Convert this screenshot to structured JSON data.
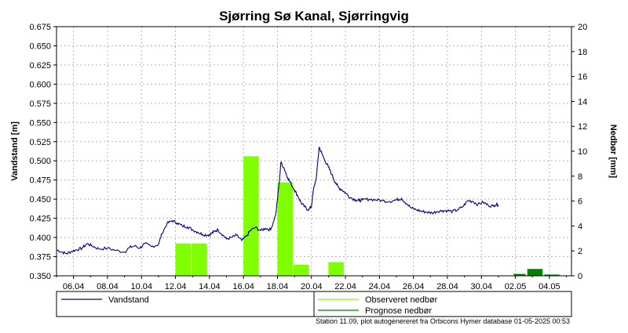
{
  "chart_data": {
    "type": "bar+line",
    "title": "Sjørring Sø Kanal, Sjørringvig",
    "ylabel_left": "Vandstand [m]",
    "ylabel_right": "Nedbør [mm]",
    "ylim_left": [
      0.35,
      0.675
    ],
    "ylim_right": [
      0,
      20
    ],
    "yticks_left": [
      "0.675",
      "0.650",
      "0.625",
      "0.600",
      "0.575",
      "0.550",
      "0.525",
      "0.500",
      "0.475",
      "0.450",
      "0.425",
      "0.400",
      "0.375",
      "0.350"
    ],
    "yticks_right": [
      "20",
      "18",
      "16",
      "14",
      "12",
      "10",
      "8",
      "6",
      "4",
      "2",
      "0"
    ],
    "x_range_days": [
      5.0,
      35.3
    ],
    "xticks": [
      {
        "day": 6,
        "label": "06.04"
      },
      {
        "day": 8,
        "label": "08.04"
      },
      {
        "day": 10,
        "label": "10.04"
      },
      {
        "day": 12,
        "label": "12.04"
      },
      {
        "day": 14,
        "label": "14.04"
      },
      {
        "day": 16,
        "label": "16.04"
      },
      {
        "day": 18,
        "label": "18.04"
      },
      {
        "day": 20,
        "label": "20.04"
      },
      {
        "day": 22,
        "label": "22.04"
      },
      {
        "day": 24,
        "label": "24.04"
      },
      {
        "day": 26,
        "label": "26.04"
      },
      {
        "day": 28,
        "label": "28.04"
      },
      {
        "day": 30,
        "label": "30.04"
      },
      {
        "day": 32,
        "label": "02.05"
      },
      {
        "day": 34,
        "label": "04.05"
      }
    ],
    "grid": true,
    "series": [
      {
        "name": "Vandstand",
        "type": "line",
        "axis": "left",
        "color": "#00008b",
        "points": [
          [
            5.0,
            0.384
          ],
          [
            5.3,
            0.381
          ],
          [
            5.6,
            0.379
          ],
          [
            5.9,
            0.382
          ],
          [
            6.2,
            0.384
          ],
          [
            6.5,
            0.386
          ],
          [
            6.8,
            0.392
          ],
          [
            7.1,
            0.389
          ],
          [
            7.5,
            0.385
          ],
          [
            8.0,
            0.386
          ],
          [
            8.5,
            0.383
          ],
          [
            9.0,
            0.381
          ],
          [
            9.3,
            0.387
          ],
          [
            9.6,
            0.389
          ],
          [
            9.9,
            0.386
          ],
          [
            10.2,
            0.392
          ],
          [
            10.6,
            0.388
          ],
          [
            11.0,
            0.391
          ],
          [
            11.2,
            0.405
          ],
          [
            11.5,
            0.418
          ],
          [
            11.8,
            0.422
          ],
          [
            12.1,
            0.419
          ],
          [
            12.4,
            0.415
          ],
          [
            12.7,
            0.414
          ],
          [
            13.0,
            0.41
          ],
          [
            13.3,
            0.407
          ],
          [
            13.6,
            0.404
          ],
          [
            13.9,
            0.403
          ],
          [
            14.1,
            0.405
          ],
          [
            14.3,
            0.408
          ],
          [
            14.5,
            0.41
          ],
          [
            14.8,
            0.403
          ],
          [
            15.0,
            0.398
          ],
          [
            15.3,
            0.4
          ],
          [
            15.6,
            0.403
          ],
          [
            15.9,
            0.396
          ],
          [
            16.2,
            0.402
          ],
          [
            16.4,
            0.409
          ],
          [
            16.7,
            0.413
          ],
          [
            17.0,
            0.409
          ],
          [
            17.3,
            0.412
          ],
          [
            17.6,
            0.41
          ],
          [
            17.9,
            0.43
          ],
          [
            18.1,
            0.47
          ],
          [
            18.2,
            0.498
          ],
          [
            18.4,
            0.49
          ],
          [
            18.6,
            0.478
          ],
          [
            18.8,
            0.47
          ],
          [
            19.0,
            0.462
          ],
          [
            19.2,
            0.454
          ],
          [
            19.4,
            0.445
          ],
          [
            19.6,
            0.44
          ],
          [
            19.8,
            0.436
          ],
          [
            20.0,
            0.44
          ],
          [
            20.1,
            0.46
          ],
          [
            20.3,
            0.48
          ],
          [
            20.45,
            0.518
          ],
          [
            20.6,
            0.51
          ],
          [
            20.8,
            0.5
          ],
          [
            21.0,
            0.492
          ],
          [
            21.2,
            0.482
          ],
          [
            21.4,
            0.472
          ],
          [
            21.6,
            0.465
          ],
          [
            21.8,
            0.462
          ],
          [
            22.0,
            0.458
          ],
          [
            22.3,
            0.452
          ],
          [
            22.6,
            0.449
          ],
          [
            22.8,
            0.448
          ],
          [
            23.0,
            0.449
          ],
          [
            23.4,
            0.45
          ],
          [
            23.8,
            0.449
          ],
          [
            24.2,
            0.448
          ],
          [
            24.6,
            0.447
          ],
          [
            25.0,
            0.449
          ],
          [
            25.3,
            0.451
          ],
          [
            25.6,
            0.444
          ],
          [
            25.9,
            0.438
          ],
          [
            26.2,
            0.436
          ],
          [
            26.5,
            0.434
          ],
          [
            26.8,
            0.433
          ],
          [
            27.1,
            0.432
          ],
          [
            27.4,
            0.434
          ],
          [
            27.7,
            0.435
          ],
          [
            28.0,
            0.435
          ],
          [
            28.3,
            0.434
          ],
          [
            28.6,
            0.436
          ],
          [
            28.9,
            0.44
          ],
          [
            29.2,
            0.448
          ],
          [
            29.5,
            0.447
          ],
          [
            29.8,
            0.443
          ],
          [
            30.1,
            0.446
          ],
          [
            30.4,
            0.442
          ],
          [
            30.7,
            0.441
          ],
          [
            30.9,
            0.444
          ],
          [
            31.0,
            0.441
          ]
        ]
      },
      {
        "name": "Observeret nedbør",
        "type": "bar",
        "axis": "right",
        "color": "#80ff00",
        "bars": [
          {
            "start": 12.0,
            "end": 12.9,
            "value": 2.6
          },
          {
            "start": 12.95,
            "end": 13.85,
            "value": 2.6
          },
          {
            "start": 16.0,
            "end": 16.9,
            "value": 9.6
          },
          {
            "start": 18.0,
            "end": 18.9,
            "value": 7.5
          },
          {
            "start": 18.95,
            "end": 19.85,
            "value": 0.9
          },
          {
            "start": 21.0,
            "end": 21.9,
            "value": 1.1
          }
        ]
      },
      {
        "name": "Prognose nedbør",
        "type": "bar",
        "axis": "right",
        "color": "#008000",
        "bars": [
          {
            "start": 31.9,
            "end": 32.6,
            "value": 0.15
          },
          {
            "start": 32.7,
            "end": 33.6,
            "value": 0.55
          },
          {
            "start": 33.7,
            "end": 34.6,
            "value": 0.1
          }
        ]
      }
    ],
    "legend": [
      {
        "name": "Vandstand",
        "color": "#00008b"
      },
      {
        "name": "Observeret nedbør",
        "color": "#80ff00"
      },
      {
        "name": "Prognose nedbør",
        "color": "#008000"
      }
    ],
    "legend_position": "bottom"
  },
  "footer": "Station 11.09, plot autogenereret fra Orbicons Hymer database 01-05-2025 00:53"
}
